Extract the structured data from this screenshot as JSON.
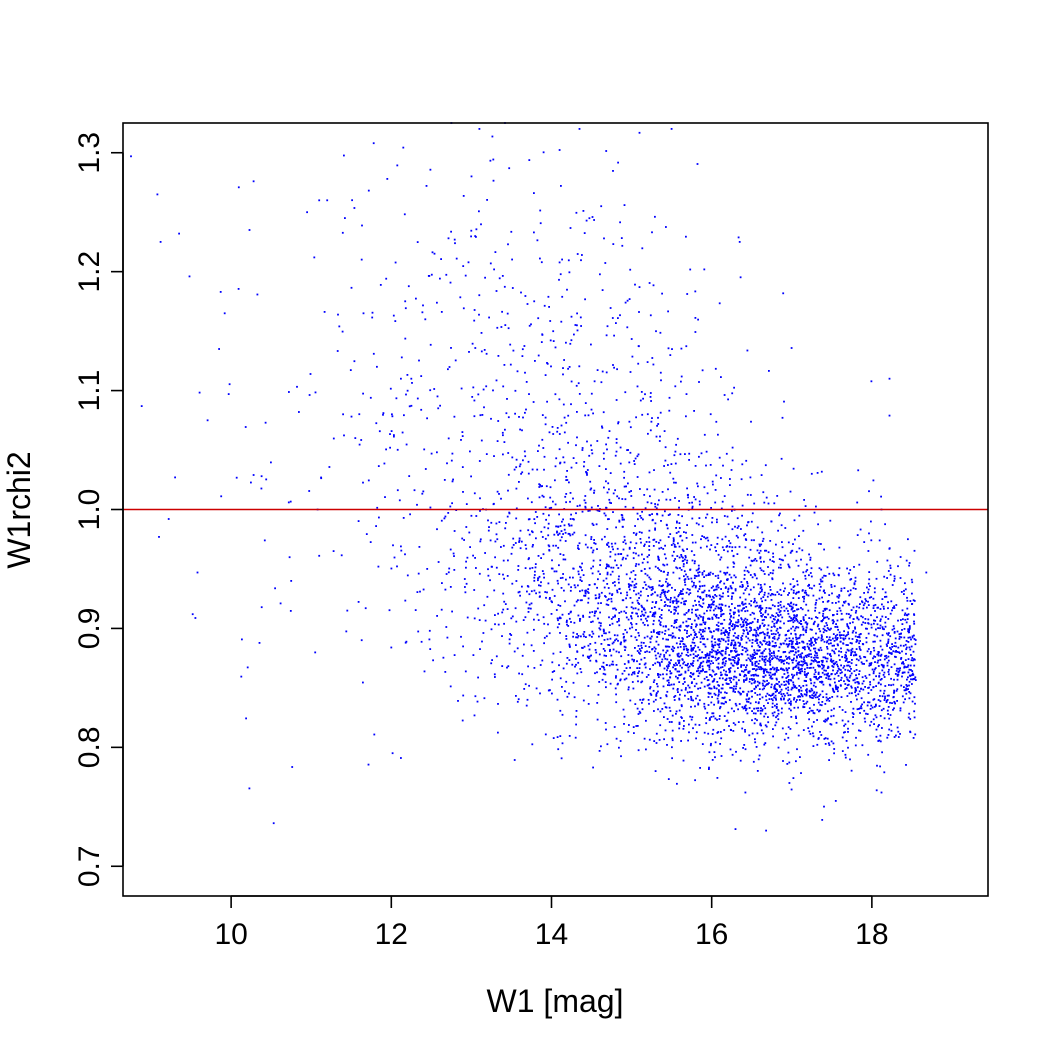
{
  "chart_data": {
    "type": "scatter",
    "title": "",
    "xlabel": "W1 [mag]",
    "ylabel": "W1rchi2",
    "xlim": [
      8.65,
      19.45
    ],
    "ylim": [
      0.675,
      1.325
    ],
    "x_ticks": [
      10,
      12,
      14,
      16,
      18
    ],
    "y_ticks": [
      0.7,
      0.8,
      0.9,
      1.0,
      1.1,
      1.2,
      1.3
    ],
    "x_tick_labels": [
      "10",
      "12",
      "14",
      "16",
      "18"
    ],
    "y_tick_labels": [
      "0.7",
      "0.8",
      "0.9",
      "1.0",
      "1.1",
      "1.2",
      "1.3"
    ],
    "grid": false,
    "legend": "none",
    "point_color": "#0000ff",
    "reference_line": {
      "y": 1.0,
      "color": "#cc0000"
    },
    "series": [
      {
        "points_sample": [
          [
            8.75,
            1.297
          ],
          [
            9.08,
            1.265
          ],
          [
            9.12,
            1.225
          ],
          [
            9.35,
            1.232
          ],
          [
            9.48,
            1.196
          ],
          [
            9.87,
            1.183
          ],
          [
            9.92,
            1.165
          ],
          [
            9.85,
            1.135
          ],
          [
            9.97,
            1.097
          ],
          [
            10.23,
            1.235
          ],
          [
            10.28,
            1.276
          ],
          [
            10.43,
            1.073
          ],
          [
            10.28,
            1.029
          ],
          [
            10.38,
            1.028
          ],
          [
            10.42,
            0.974
          ],
          [
            10.72,
            1.006
          ],
          [
            10.75,
            0.94
          ],
          [
            9.3,
            1.027
          ],
          [
            9.22,
            0.992
          ],
          [
            9.1,
            0.977
          ],
          [
            9.58,
            0.947
          ],
          [
            9.52,
            0.912
          ],
          [
            11.1,
            1.26
          ],
          [
            11.2,
            1.26
          ],
          [
            11.42,
            1.245
          ],
          [
            11.78,
            1.308
          ],
          [
            11.95,
            1.278
          ],
          [
            11.35,
            1.154
          ],
          [
            11.82,
            1.12
          ],
          [
            12.12,
            1.11
          ],
          [
            12.25,
            1.11
          ],
          [
            11.55,
            1.06
          ],
          [
            11.08,
            1.0
          ],
          [
            11.28,
            0.965
          ],
          [
            11.68,
            0.917
          ],
          [
            11.45,
            0.915
          ],
          [
            12.0,
            0.884
          ],
          [
            12.12,
            0.791
          ],
          [
            12.18,
            0.888
          ],
          [
            12.48,
            0.898
          ],
          [
            12.75,
            1.325
          ],
          [
            13.1,
            1.32
          ],
          [
            13.42,
            1.325
          ],
          [
            14.35,
            1.32
          ],
          [
            15.5,
            1.32
          ],
          [
            13.05,
            0.843
          ],
          [
            13.7,
            0.84
          ],
          [
            14.68,
            0.815
          ],
          [
            15.3,
            0.78
          ],
          [
            15.1,
            0.83
          ],
          [
            18.22,
            1.11
          ],
          [
            18.22,
            1.079
          ],
          [
            17.83,
            1.033
          ],
          [
            17.25,
            1.03
          ],
          [
            16.35,
            1.225
          ],
          [
            16.68,
            0.73
          ],
          [
            17.38,
            0.739
          ],
          [
            17.55,
            0.755
          ],
          [
            18.12,
            0.762
          ],
          [
            16.97,
            0.77
          ],
          [
            18.12,
            1.0
          ],
          [
            18.45,
            0.975
          ],
          [
            18.68,
            0.947
          ],
          [
            18.48,
            0.86
          ],
          [
            18.3,
            0.81
          ]
        ],
        "dense_regions": [
          {
            "x_mean": 16.9,
            "x_sd": 1.05,
            "y_mean": 0.872,
            "y_sd": 0.035,
            "count": 2600
          },
          {
            "x_mean": 15.7,
            "x_sd": 1.2,
            "y_mean": 0.915,
            "y_sd": 0.045,
            "count": 1300
          },
          {
            "x_mean": 14.7,
            "x_sd": 1.1,
            "y_mean": 0.97,
            "y_sd": 0.06,
            "count": 700
          },
          {
            "x_mean": 14.0,
            "x_sd": 1.2,
            "y_mean": 1.07,
            "y_sd": 0.09,
            "count": 380
          },
          {
            "x_mean": 13.8,
            "x_sd": 1.2,
            "y_mean": 1.2,
            "y_sd": 0.07,
            "count": 160
          },
          {
            "x_mean": 12.0,
            "x_sd": 1.3,
            "y_mean": 1.02,
            "y_sd": 0.12,
            "count": 140
          }
        ]
      }
    ]
  }
}
